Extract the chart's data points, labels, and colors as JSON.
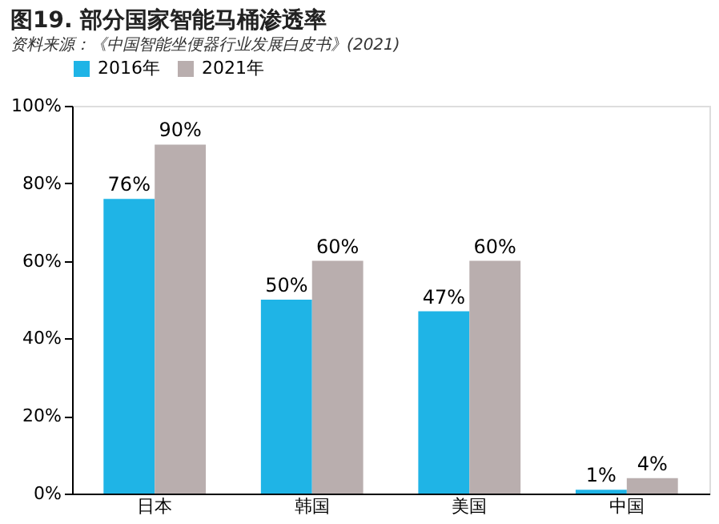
{
  "chart_data": {
    "type": "bar",
    "title": "图19. 部分国家智能马桶渗透率",
    "categories": [
      "日本",
      "韩国",
      "美国",
      "中国"
    ],
    "series": [
      {
        "name": "2016年",
        "color": "#1fb4e6",
        "values": [
          76,
          50,
          47,
          1
        ],
        "value_labels": [
          "76%",
          "50%",
          "47%",
          "1%"
        ]
      },
      {
        "name": "2021年",
        "color": "#b9aeae",
        "values": [
          90,
          60,
          60,
          4
        ],
        "value_labels": [
          "90%",
          "60%",
          "60%",
          "4%"
        ]
      }
    ],
    "ylim": [
      0,
      100
    ],
    "yticks": [
      {
        "value": 0,
        "label": "0%"
      },
      {
        "value": 20,
        "label": "20%"
      },
      {
        "value": 40,
        "label": "40%"
      },
      {
        "value": 60,
        "label": "60%"
      },
      {
        "value": 80,
        "label": "80%"
      },
      {
        "value": 100,
        "label": "100%"
      }
    ],
    "grid": false,
    "legend": "top",
    "annotations": [
      "资料来源：《中国智能坐便器行业发展白皮书》(2021)"
    ]
  }
}
